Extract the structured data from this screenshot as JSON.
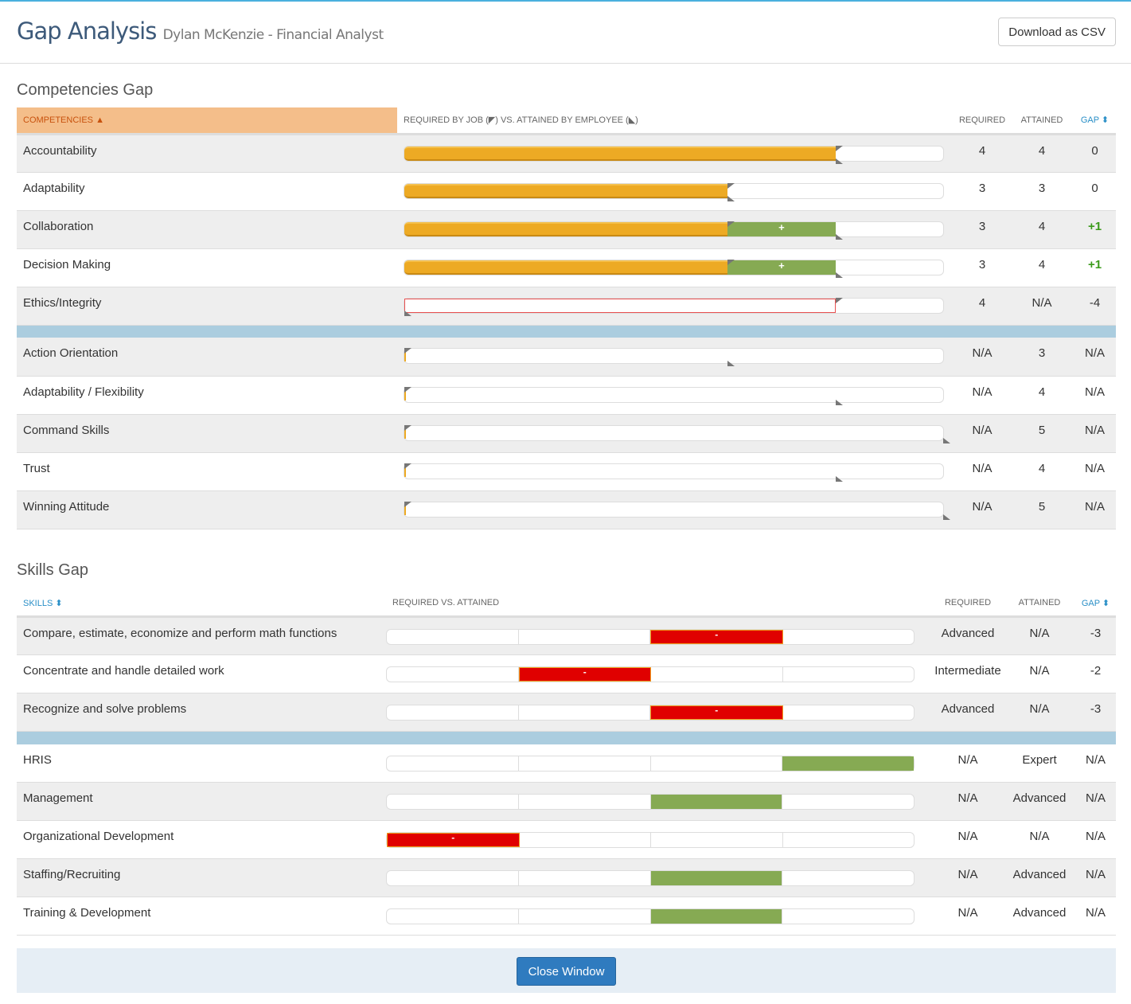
{
  "header": {
    "title": "Gap Analysis",
    "subtitle": "Dylan McKenzie - Financial Analyst",
    "download_label": "Download as CSV"
  },
  "competencies": {
    "heading": "Competencies Gap",
    "columns": {
      "name": "COMPETENCIES ▲",
      "bar": "REQUIRED BY JOB (◤) VS. ATTAINED BY EMPLOYEE (◣)",
      "required": "REQUIRED",
      "attained": "ATTAINED",
      "gap": "GAP ⬍"
    },
    "max_level": 5,
    "rows": [
      {
        "name": "Accountability",
        "required": "4",
        "attained": "4",
        "gap": "0"
      },
      {
        "name": "Adaptability",
        "required": "3",
        "attained": "3",
        "gap": "0"
      },
      {
        "name": "Collaboration",
        "required": "3",
        "attained": "4",
        "gap": "+1",
        "plus": "+"
      },
      {
        "name": "Decision Making",
        "required": "3",
        "attained": "4",
        "gap": "+1",
        "plus": "+"
      },
      {
        "name": "Ethics/Integrity",
        "required": "4",
        "attained": "N/A",
        "gap": "-4"
      }
    ],
    "other_rows": [
      {
        "name": "Action Orientation",
        "required": "N/A",
        "attained": "3",
        "gap": "N/A"
      },
      {
        "name": "Adaptability / Flexibility",
        "required": "N/A",
        "attained": "4",
        "gap": "N/A"
      },
      {
        "name": "Command Skills",
        "required": "N/A",
        "attained": "5",
        "gap": "N/A"
      },
      {
        "name": "Trust",
        "required": "N/A",
        "attained": "4",
        "gap": "N/A"
      },
      {
        "name": "Winning Attitude",
        "required": "N/A",
        "attained": "5",
        "gap": "N/A"
      }
    ]
  },
  "skills": {
    "heading": "Skills Gap",
    "columns": {
      "name": "SKILLS ⬍",
      "bar": "REQUIRED VS. ATTAINED",
      "required": "REQUIRED",
      "attained": "ATTAINED",
      "gap": "GAP ⬍"
    },
    "rows": [
      {
        "name": "Compare, estimate, economize and perform math functions",
        "required": "Advanced",
        "attained": "N/A",
        "gap": "-3",
        "segment": 3,
        "status": "deficit",
        "mark": "-"
      },
      {
        "name": "Concentrate and handle detailed work",
        "required": "Intermediate",
        "attained": "N/A",
        "gap": "-2",
        "segment": 2,
        "status": "deficit",
        "mark": "-"
      },
      {
        "name": "Recognize and solve problems",
        "required": "Advanced",
        "attained": "N/A",
        "gap": "-3",
        "segment": 3,
        "status": "deficit",
        "mark": "-"
      }
    ],
    "other_rows": [
      {
        "name": "HRIS",
        "required": "N/A",
        "attained": "Expert",
        "gap": "N/A",
        "segment": 4,
        "status": "attained"
      },
      {
        "name": "Management",
        "required": "N/A",
        "attained": "Advanced",
        "gap": "N/A",
        "segment": 3,
        "status": "attained"
      },
      {
        "name": "Organizational Development",
        "required": "N/A",
        "attained": "N/A",
        "gap": "N/A",
        "segment": 1,
        "status": "deficit",
        "mark": "-"
      },
      {
        "name": "Staffing/Recruiting",
        "required": "N/A",
        "attained": "Advanced",
        "gap": "N/A",
        "segment": 3,
        "status": "attained"
      },
      {
        "name": "Training & Development",
        "required": "N/A",
        "attained": "Advanced",
        "gap": "N/A",
        "segment": 3,
        "status": "attained"
      }
    ]
  },
  "footer": {
    "close_label": "Close Window"
  }
}
